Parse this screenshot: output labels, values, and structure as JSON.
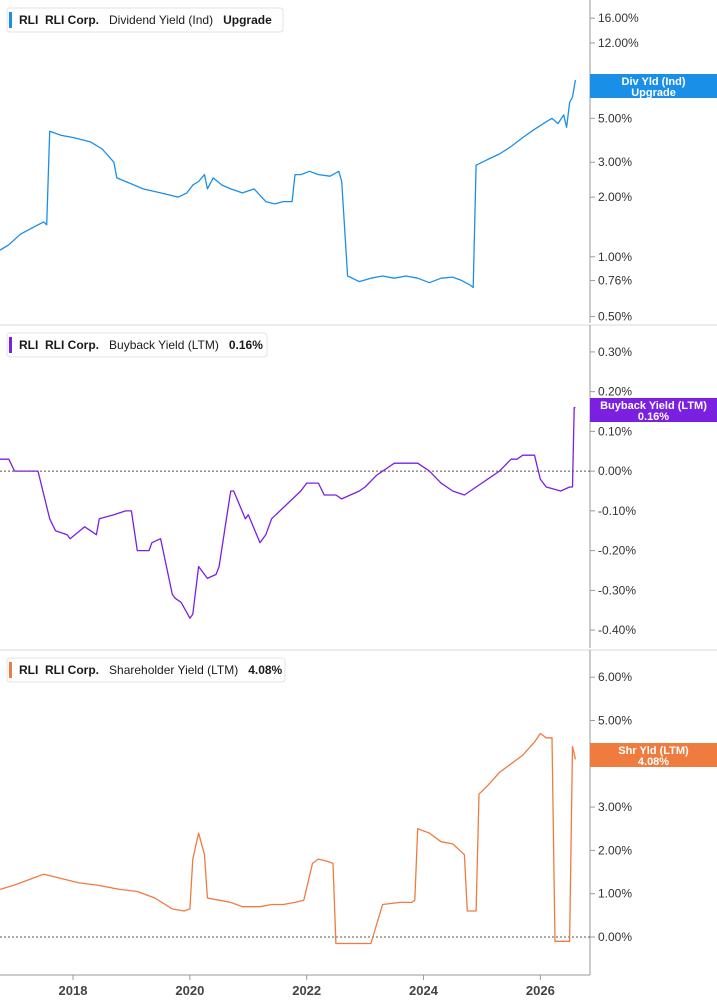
{
  "colors": {
    "dividend": "#1a8fe8",
    "buyback": "#7b20e0",
    "shareholder": "#f07b3f",
    "gridline": "#d9d9d9",
    "axis": "#9a9a9a",
    "zero_line": "#555555"
  },
  "x_axis": {
    "labels": [
      "2018",
      "2020",
      "2022",
      "2024",
      "2026"
    ],
    "values": [
      2018,
      2020,
      2022,
      2024,
      2026
    ],
    "range": [
      2016.75,
      2026.85
    ]
  },
  "chart_data": [
    {
      "type": "line",
      "ticker": "RLI",
      "company": "RLI Corp.",
      "metric": "Dividend Yield (Ind)",
      "last_value": "Upgrade",
      "tag_label": "Div Yld (Ind)",
      "tag_value": "Upgrade",
      "y_scale": "log",
      "ylim": [
        0.48,
        18
      ],
      "y_ticks": [
        0.5,
        0.76,
        1,
        2,
        3,
        5,
        12,
        16
      ],
      "y_tick_labels": [
        "0.50%",
        "0.76%",
        "1.00%",
        "2.00%",
        "3.00%",
        "5.00%",
        "12.00%",
        "16.00%"
      ],
      "zero_line": false,
      "series": [
        {
          "x": [
            2016.75,
            2016.9,
            2017.1,
            2017.3,
            2017.4,
            2017.5,
            2017.55,
            2017.6,
            2017.8,
            2018.0,
            2018.3,
            2018.5,
            2018.7,
            2018.75,
            2018.9,
            2019.2,
            2019.5,
            2019.8,
            2019.95,
            2020.05,
            2020.15,
            2020.25,
            2020.3,
            2020.4,
            2020.55,
            2020.7,
            2020.9,
            2021.1,
            2021.3,
            2021.45,
            2021.6,
            2021.75,
            2021.8,
            2021.9,
            2022.05,
            2022.2,
            2022.4,
            2022.55,
            2022.6,
            2022.7,
            2022.9,
            2023.1,
            2023.3,
            2023.5,
            2023.7,
            2023.9,
            2024.1,
            2024.3,
            2024.5,
            2024.65,
            2024.8,
            2024.85,
            2024.9,
            2025.1,
            2025.3,
            2025.5,
            2025.7,
            2025.9,
            2026.1,
            2026.2,
            2026.3,
            2026.4,
            2026.45,
            2026.5,
            2026.55,
            2026.6
          ],
          "y": [
            1.08,
            1.15,
            1.3,
            1.4,
            1.45,
            1.5,
            1.45,
            4.3,
            4.1,
            4.0,
            3.8,
            3.5,
            3.0,
            2.5,
            2.4,
            2.2,
            2.1,
            2.0,
            2.1,
            2.3,
            2.4,
            2.6,
            2.2,
            2.5,
            2.3,
            2.2,
            2.1,
            2.2,
            1.9,
            1.85,
            1.9,
            1.9,
            2.6,
            2.6,
            2.7,
            2.6,
            2.55,
            2.7,
            2.4,
            0.8,
            0.75,
            0.78,
            0.8,
            0.78,
            0.8,
            0.78,
            0.74,
            0.78,
            0.79,
            0.76,
            0.72,
            0.7,
            2.9,
            3.1,
            3.3,
            3.6,
            4.0,
            4.4,
            4.8,
            5.0,
            4.7,
            5.2,
            4.5,
            6.0,
            6.4,
            7.8
          ]
        }
      ]
    },
    {
      "type": "line",
      "ticker": "RLI",
      "company": "RLI Corp.",
      "metric": "Buyback Yield (LTM)",
      "last_value": "0.16%",
      "tag_label": "Buyback Yield (LTM)",
      "tag_value": "0.16%",
      "y_scale": "linear",
      "ylim": [
        -0.43,
        0.33
      ],
      "y_ticks": [
        -0.4,
        -0.3,
        -0.2,
        -0.1,
        0.0,
        0.1,
        0.2,
        0.3
      ],
      "y_tick_labels": [
        "-0.40%",
        "-0.30%",
        "-0.20%",
        "-0.10%",
        "0.00%",
        "0.10%",
        "0.20%",
        "0.30%"
      ],
      "zero_line": true,
      "series": [
        {
          "x": [
            2016.75,
            2016.9,
            2017.0,
            2017.4,
            2017.6,
            2017.7,
            2017.9,
            2017.95,
            2018.2,
            2018.4,
            2018.45,
            2018.7,
            2018.9,
            2019.0,
            2019.1,
            2019.3,
            2019.35,
            2019.5,
            2019.7,
            2019.75,
            2019.85,
            2020.0,
            2020.05,
            2020.15,
            2020.3,
            2020.45,
            2020.5,
            2020.7,
            2020.75,
            2020.95,
            2021.0,
            2021.2,
            2021.3,
            2021.4,
            2021.9,
            2022.0,
            2022.2,
            2022.3,
            2022.5,
            2022.6,
            2022.9,
            2023.0,
            2023.2,
            2023.5,
            2023.8,
            2023.9,
            2024.1,
            2024.3,
            2024.5,
            2024.7,
            2024.9,
            2025.1,
            2025.3,
            2025.5,
            2025.6,
            2025.7,
            2025.9,
            2026.0,
            2026.1,
            2026.35,
            2026.5,
            2026.55,
            2026.58,
            2026.6
          ],
          "y": [
            0.03,
            0.03,
            0.0,
            0.0,
            -0.12,
            -0.15,
            -0.16,
            -0.17,
            -0.14,
            -0.16,
            -0.12,
            -0.11,
            -0.1,
            -0.1,
            -0.2,
            -0.2,
            -0.18,
            -0.17,
            -0.31,
            -0.32,
            -0.33,
            -0.37,
            -0.36,
            -0.24,
            -0.27,
            -0.26,
            -0.24,
            -0.05,
            -0.05,
            -0.12,
            -0.11,
            -0.18,
            -0.16,
            -0.12,
            -0.05,
            -0.03,
            -0.03,
            -0.06,
            -0.06,
            -0.07,
            -0.05,
            -0.04,
            -0.01,
            0.02,
            0.02,
            0.02,
            0.0,
            -0.03,
            -0.05,
            -0.06,
            -0.04,
            -0.02,
            0.0,
            0.03,
            0.03,
            0.04,
            0.04,
            -0.02,
            -0.04,
            -0.05,
            -0.04,
            -0.04,
            0.16,
            0.16
          ]
        }
      ]
    },
    {
      "type": "line",
      "ticker": "RLI",
      "company": "RLI Corp.",
      "metric": "Shareholder Yield (LTM)",
      "last_value": "4.08%",
      "tag_label": "Shr Yld (LTM)",
      "tag_value": "4.08%",
      "y_scale": "linear",
      "ylim": [
        -0.3,
        6.35
      ],
      "y_ticks": [
        0,
        1,
        2,
        3,
        5,
        6
      ],
      "y_tick_labels": [
        "0.00%",
        "1.00%",
        "2.00%",
        "3.00%",
        "5.00%",
        "6.00%"
      ],
      "zero_line": true,
      "series": [
        {
          "x": [
            2016.75,
            2017.0,
            2017.3,
            2017.5,
            2017.8,
            2018.1,
            2018.4,
            2018.8,
            2019.1,
            2019.4,
            2019.7,
            2019.9,
            2020.0,
            2020.05,
            2020.15,
            2020.25,
            2020.3,
            2020.5,
            2020.7,
            2020.9,
            2021.2,
            2021.4,
            2021.6,
            2021.8,
            2021.95,
            2022.1,
            2022.2,
            2022.35,
            2022.45,
            2022.5,
            2022.8,
            2023.0,
            2023.1,
            2023.3,
            2023.6,
            2023.8,
            2023.85,
            2023.9,
            2024.1,
            2024.3,
            2024.5,
            2024.7,
            2024.75,
            2024.9,
            2024.95,
            2025.1,
            2025.3,
            2025.5,
            2025.7,
            2025.9,
            2026.0,
            2026.1,
            2026.2,
            2026.25,
            2026.3,
            2026.45,
            2026.5,
            2026.55,
            2026.6
          ],
          "y": [
            1.1,
            1.2,
            1.35,
            1.45,
            1.35,
            1.25,
            1.2,
            1.1,
            1.05,
            0.9,
            0.65,
            0.6,
            0.65,
            1.8,
            2.4,
            1.9,
            0.9,
            0.85,
            0.8,
            0.7,
            0.7,
            0.75,
            0.75,
            0.8,
            0.85,
            1.7,
            1.8,
            1.75,
            1.7,
            -0.15,
            -0.15,
            -0.15,
            -0.15,
            0.75,
            0.8,
            0.8,
            0.85,
            2.5,
            2.4,
            2.2,
            2.15,
            1.9,
            0.6,
            0.6,
            3.3,
            3.5,
            3.8,
            4.0,
            4.2,
            4.5,
            4.7,
            4.6,
            4.6,
            -0.1,
            -0.1,
            -0.1,
            -0.1,
            4.4,
            4.1
          ]
        }
      ]
    }
  ]
}
